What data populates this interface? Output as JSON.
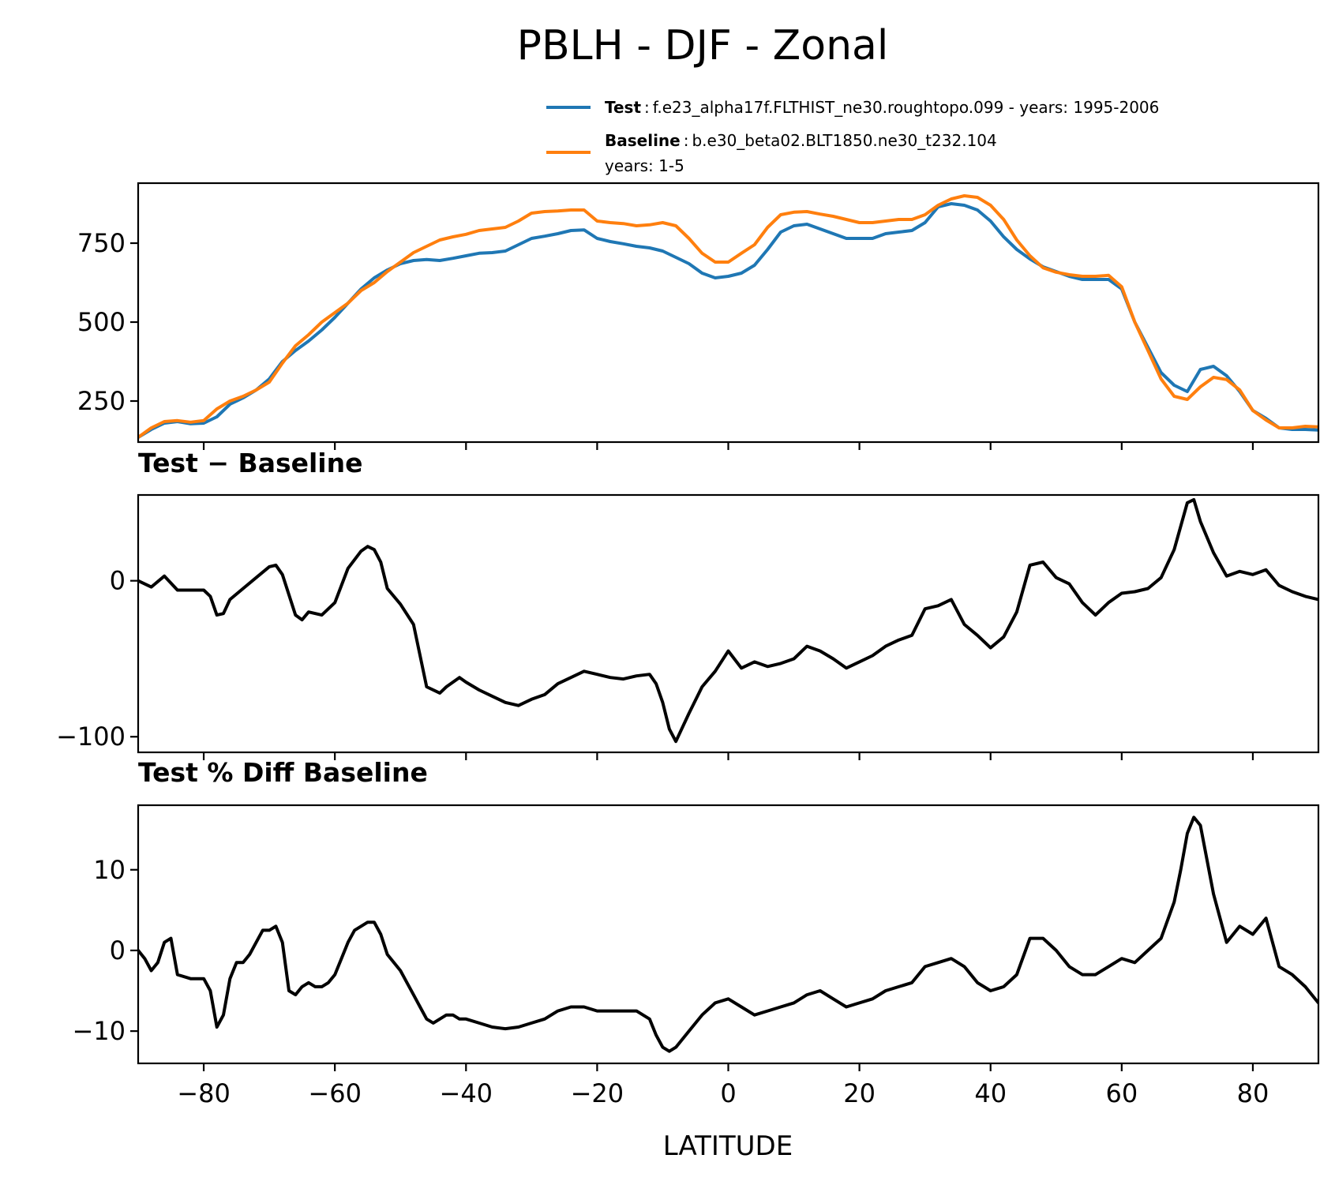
{
  "chart_data": {
    "type": "line",
    "title": "PBLH - DJF - Zonal",
    "xlabel": "LATITUDE",
    "xlim": [
      -90,
      90
    ],
    "xticks": [
      -80,
      -60,
      -40,
      -20,
      0,
      20,
      40,
      60,
      80
    ],
    "xtick_labels": [
      "−80",
      "−60",
      "−40",
      "−20",
      "0",
      "20",
      "40",
      "60",
      "80"
    ],
    "colors": {
      "test": "#1f77b4",
      "baseline": "#ff7f0e",
      "diff": "#000000"
    },
    "legend": [
      {
        "key": "Test",
        "sep": ":",
        "text": "f.e23_alpha17f.FLTHIST_ne30.roughtopo.099 - years: 1995-2006"
      },
      {
        "key": "Baseline",
        "sep": ":",
        "text": "b.e30_beta02.BLT1850.ne30_t232.104",
        "text2": "years: 1-5"
      }
    ],
    "panels": [
      {
        "title": "",
        "ylim": [
          120,
          940
        ],
        "yticks": [
          250,
          500,
          750
        ],
        "ytick_labels": [
          "250",
          "500",
          "750"
        ],
        "series": [
          {
            "name": "Test",
            "x": [
              -90,
              -88,
              -86,
              -84,
              -82,
              -80,
              -78,
              -76,
              -74,
              -72,
              -70,
              -68,
              -66,
              -64,
              -62,
              -60,
              -58,
              -56,
              -54,
              -52,
              -50,
              -48,
              -46,
              -44,
              -42,
              -40,
              -38,
              -36,
              -34,
              -32,
              -30,
              -28,
              -26,
              -24,
              -22,
              -20,
              -18,
              -16,
              -14,
              -12,
              -10,
              -8,
              -6,
              -4,
              -2,
              0,
              2,
              4,
              6,
              8,
              10,
              12,
              14,
              16,
              18,
              20,
              22,
              24,
              26,
              28,
              30,
              32,
              34,
              36,
              38,
              40,
              42,
              44,
              46,
              48,
              50,
              52,
              54,
              56,
              58,
              60,
              62,
              64,
              66,
              68,
              70,
              72,
              74,
              76,
              78,
              80,
              82,
              84,
              86,
              88,
              90
            ],
            "values": [
              135,
              160,
              180,
              185,
              178,
              180,
              200,
              240,
              260,
              285,
              320,
              375,
              410,
              440,
              475,
              515,
              560,
              605,
              640,
              665,
              685,
              695,
              698,
              695,
              702,
              710,
              718,
              720,
              725,
              745,
              765,
              772,
              780,
              790,
              792,
              765,
              755,
              748,
              740,
              735,
              725,
              705,
              685,
              655,
              640,
              645,
              655,
              680,
              730,
              785,
              805,
              810,
              795,
              780,
              765,
              765,
              765,
              780,
              785,
              790,
              815,
              865,
              875,
              870,
              855,
              820,
              770,
              730,
              700,
              675,
              660,
              645,
              635,
              635,
              635,
              605,
              500,
              420,
              340,
              300,
              280,
              350,
              360,
              330,
              280,
              220,
              195,
              165,
              160,
              160,
              158
            ]
          },
          {
            "name": "Baseline",
            "x": [
              -90,
              -88,
              -86,
              -84,
              -82,
              -80,
              -78,
              -76,
              -74,
              -72,
              -70,
              -68,
              -66,
              -64,
              -62,
              -60,
              -58,
              -56,
              -54,
              -52,
              -50,
              -48,
              -46,
              -44,
              -42,
              -40,
              -38,
              -36,
              -34,
              -32,
              -30,
              -28,
              -26,
              -24,
              -22,
              -20,
              -18,
              -16,
              -14,
              -12,
              -10,
              -8,
              -6,
              -4,
              -2,
              0,
              2,
              4,
              6,
              8,
              10,
              12,
              14,
              16,
              18,
              20,
              22,
              24,
              26,
              28,
              30,
              32,
              34,
              36,
              38,
              40,
              42,
              44,
              46,
              48,
              50,
              52,
              54,
              56,
              58,
              60,
              62,
              64,
              66,
              68,
              70,
              72,
              74,
              76,
              78,
              80,
              82,
              84,
              86,
              88,
              90
            ],
            "values": [
              135,
              165,
              185,
              188,
              183,
              188,
              225,
              250,
              265,
              285,
              310,
              370,
              425,
              460,
              500,
              530,
              560,
              600,
              625,
              660,
              690,
              720,
              740,
              760,
              770,
              778,
              790,
              795,
              800,
              820,
              845,
              850,
              852,
              855,
              855,
              820,
              815,
              812,
              805,
              808,
              815,
              805,
              765,
              718,
              690,
              690,
              718,
              745,
              800,
              840,
              848,
              850,
              842,
              835,
              825,
              815,
              815,
              820,
              825,
              825,
              840,
              870,
              890,
              900,
              895,
              870,
              825,
              760,
              710,
              672,
              658,
              650,
              645,
              645,
              648,
              612,
              500,
              410,
              320,
              265,
              255,
              295,
              325,
              318,
              285,
              220,
              190,
              165,
              165,
              170,
              168
            ]
          }
        ]
      },
      {
        "title": "Test − Baseline",
        "ylim": [
          -110,
          55
        ],
        "yticks": [
          -100,
          0
        ],
        "ytick_labels": [
          "−100",
          "0"
        ],
        "series": [
          {
            "name": "Test − Baseline",
            "x": [
              -90,
              -88,
              -86,
              -84,
              -82,
              -80,
              -79,
              -78,
              -77,
              -76,
              -74,
              -72,
              -70,
              -69,
              -68,
              -66,
              -65,
              -64,
              -62,
              -60,
              -58,
              -56,
              -55,
              -54,
              -53,
              -52,
              -50,
              -48,
              -46,
              -44,
              -43,
              -42,
              -41,
              -40,
              -38,
              -36,
              -34,
              -32,
              -30,
              -28,
              -26,
              -24,
              -22,
              -20,
              -18,
              -16,
              -14,
              -12,
              -11,
              -10,
              -9,
              -8,
              -6,
              -4,
              -2,
              0,
              2,
              4,
              6,
              8,
              10,
              12,
              14,
              16,
              18,
              20,
              22,
              24,
              26,
              28,
              30,
              32,
              34,
              36,
              38,
              40,
              42,
              44,
              46,
              48,
              50,
              52,
              54,
              56,
              58,
              60,
              62,
              64,
              66,
              68,
              70,
              71,
              72,
              74,
              76,
              78,
              80,
              82,
              84,
              86,
              88,
              90
            ],
            "values": [
              0,
              -4,
              3,
              -6,
              -6,
              -6,
              -10,
              -22,
              -21,
              -12,
              -5,
              2,
              9,
              10,
              4,
              -22,
              -25,
              -20,
              -22,
              -14,
              8,
              19,
              22,
              20,
              12,
              -5,
              -15,
              -28,
              -68,
              -72,
              -68,
              -65,
              -62,
              -65,
              -70,
              -74,
              -78,
              -80,
              -76,
              -73,
              -66,
              -62,
              -58,
              -60,
              -62,
              -63,
              -61,
              -60,
              -66,
              -78,
              -95,
              -103,
              -85,
              -68,
              -58,
              -45,
              -56,
              -52,
              -55,
              -53,
              -50,
              -42,
              -45,
              -50,
              -56,
              -52,
              -48,
              -42,
              -38,
              -35,
              -18,
              -16,
              -12,
              -28,
              -35,
              -43,
              -36,
              -20,
              10,
              12,
              2,
              -2,
              -14,
              -22,
              -14,
              -8,
              -7,
              -5,
              2,
              20,
              50,
              52,
              38,
              18,
              3,
              6,
              4,
              7,
              -3,
              -7,
              -10,
              -12
            ]
          }
        ]
      },
      {
        "title": "Test % Diff Baseline",
        "ylim": [
          -14,
          18
        ],
        "yticks": [
          -10,
          0,
          10
        ],
        "ytick_labels": [
          "−10",
          "0",
          "10"
        ],
        "series": [
          {
            "name": "Test % Diff Baseline",
            "x": [
              -90,
              -89,
              -88,
              -87,
              -86,
              -85,
              -84,
              -82,
              -80,
              -79,
              -78,
              -77,
              -76,
              -75,
              -74,
              -73,
              -72,
              -71,
              -70,
              -69,
              -68,
              -67,
              -66,
              -65,
              -64,
              -63,
              -62,
              -61,
              -60,
              -59,
              -58,
              -57,
              -56,
              -55,
              -54,
              -53,
              -52,
              -51,
              -50,
              -49,
              -48,
              -47,
              -46,
              -45,
              -44,
              -43,
              -42,
              -41,
              -40,
              -38,
              -36,
              -34,
              -32,
              -30,
              -28,
              -26,
              -24,
              -22,
              -20,
              -18,
              -16,
              -14,
              -12,
              -11,
              -10,
              -9,
              -8,
              -6,
              -4,
              -2,
              0,
              2,
              4,
              6,
              8,
              10,
              12,
              14,
              16,
              18,
              20,
              22,
              24,
              26,
              28,
              30,
              32,
              34,
              36,
              38,
              40,
              42,
              44,
              46,
              48,
              50,
              52,
              54,
              56,
              58,
              60,
              62,
              64,
              66,
              68,
              69,
              70,
              71,
              72,
              74,
              76,
              78,
              80,
              82,
              84,
              86,
              88,
              90
            ],
            "values": [
              0,
              -1,
              -2.5,
              -1.5,
              1,
              1.5,
              -3,
              -3.5,
              -3.5,
              -5,
              -9.5,
              -8,
              -3.5,
              -1.5,
              -1.5,
              -0.5,
              1,
              2.5,
              2.5,
              3,
              1,
              -5,
              -5.5,
              -4.5,
              -4,
              -4.5,
              -4.5,
              -4,
              -3,
              -1,
              1,
              2.5,
              3,
              3.5,
              3.5,
              2,
              -0.5,
              -1.5,
              -2.5,
              -4,
              -5.5,
              -7,
              -8.5,
              -9,
              -8.5,
              -8,
              -8,
              -8.5,
              -8.5,
              -9,
              -9.5,
              -9.7,
              -9.5,
              -9,
              -8.5,
              -7.5,
              -7,
              -7,
              -7.5,
              -7.5,
              -7.5,
              -7.5,
              -8.5,
              -10.5,
              -12,
              -12.5,
              -12,
              -10,
              -8,
              -6.5,
              -6,
              -7,
              -8,
              -7.5,
              -7,
              -6.5,
              -5.5,
              -5,
              -6,
              -7,
              -6.5,
              -6,
              -5,
              -4.5,
              -4,
              -2,
              -1.5,
              -1,
              -2,
              -4,
              -5,
              -4.5,
              -3,
              1.5,
              1.5,
              0,
              -2,
              -3,
              -3,
              -2,
              -1,
              -1.5,
              0,
              1.5,
              6,
              10,
              14.5,
              16.5,
              15.5,
              7,
              1,
              3,
              2,
              4,
              -2,
              -3,
              -4.5,
              -6.5
            ]
          }
        ]
      }
    ]
  }
}
